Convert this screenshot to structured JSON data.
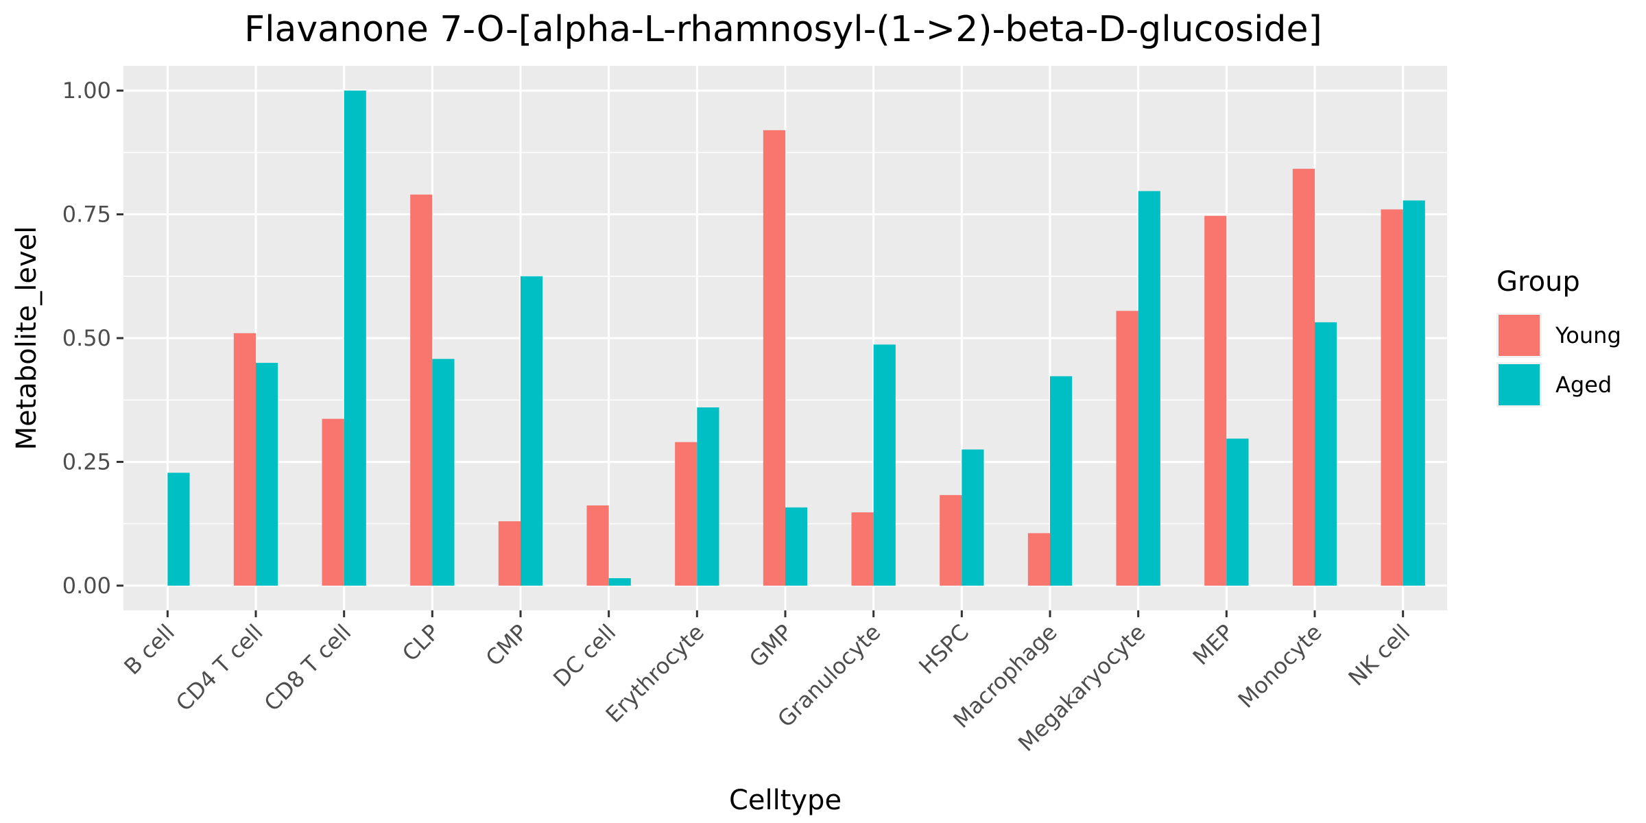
{
  "chart_data": {
    "type": "bar",
    "title": "Flavanone 7-O-[alpha-L-rhamnosyl-(1->2)-beta-D-glucoside]",
    "xlabel": "Celltype",
    "ylabel": "Metabolite_level",
    "categories": [
      "B cell",
      "CD4 T cell",
      "CD8 T cell",
      "CLP",
      "CMP",
      "DC cell",
      "Erythrocyte",
      "GMP",
      "Granulocyte",
      "HSPC",
      "Macrophage",
      "Megakaryocyte",
      "MEP",
      "Monocyte",
      "NK cell"
    ],
    "series": [
      {
        "name": "Young",
        "color": "#F8766D",
        "values": [
          0.0,
          0.51,
          0.337,
          0.79,
          0.13,
          0.162,
          0.29,
          0.92,
          0.148,
          0.183,
          0.106,
          0.555,
          0.747,
          0.842,
          0.76
        ]
      },
      {
        "name": "Aged",
        "color": "#00BFC4",
        "values": [
          0.228,
          0.45,
          1.0,
          0.458,
          0.625,
          0.015,
          0.36,
          0.158,
          0.487,
          0.275,
          0.423,
          0.797,
          0.297,
          0.532,
          0.778
        ]
      }
    ],
    "ylim": [
      -0.05,
      1.05
    ],
    "yticks": [
      "0.00",
      "0.25",
      "0.50",
      "0.75",
      "1.00"
    ],
    "grid": true,
    "legend": {
      "title": "Group",
      "position": "right"
    }
  }
}
